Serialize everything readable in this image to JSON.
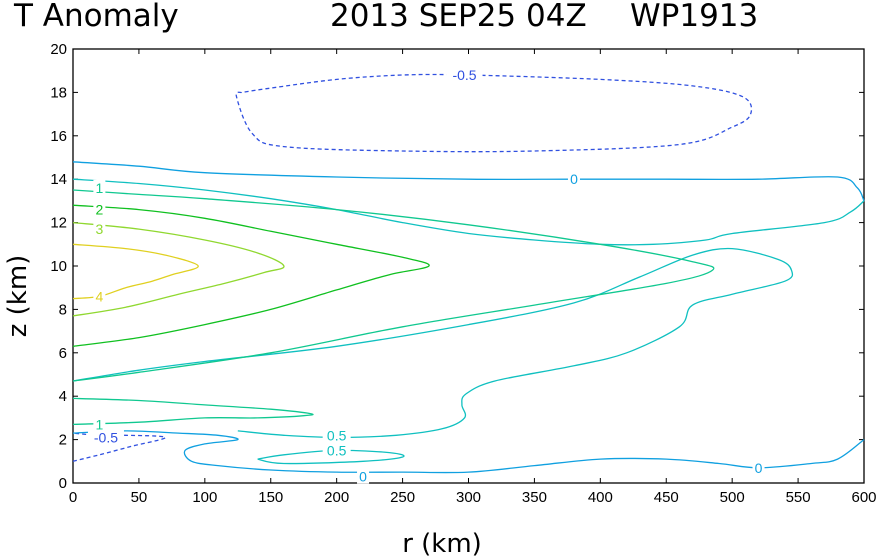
{
  "chart_data": {
    "type": "contour",
    "title": "T Anomaly",
    "date": "2013 SEP25 04Z",
    "storm_id": "WP1913",
    "xlabel": "r (km)",
    "ylabel": "z (km)",
    "xlim": [
      0,
      600
    ],
    "ylim": [
      0,
      20
    ],
    "xticks": [
      0,
      50,
      100,
      150,
      200,
      250,
      300,
      350,
      400,
      450,
      500,
      550,
      600
    ],
    "yticks": [
      0,
      2,
      4,
      6,
      8,
      10,
      12,
      14,
      16,
      18,
      20
    ],
    "colors": {
      "neg_0_5": "#3050e0",
      "zero": "#10a0e0",
      "pos_0_5": "#10c0c0",
      "pos_1": "#10c890",
      "pos_2": "#10c020",
      "pos_3": "#90d830",
      "pos_4": "#e0d020"
    },
    "contours": [
      {
        "level": "-0.5",
        "color": "neg_0_5",
        "dashed": true,
        "points": [
          [
            128,
            18
          ],
          [
            124,
            17.8
          ],
          [
            136,
            16.1
          ],
          [
            160,
            15.5
          ],
          [
            250,
            15.3
          ],
          [
            350,
            15.3
          ],
          [
            460,
            15.6
          ],
          [
            500,
            16.4
          ],
          [
            514,
            17
          ],
          [
            508,
            17.8
          ],
          [
            470,
            18.3
          ],
          [
            400,
            18.6
          ],
          [
            300,
            18.8
          ],
          [
            250,
            18.8
          ],
          [
            200,
            18.6
          ],
          [
            150,
            18.2
          ],
          [
            128,
            18
          ]
        ]
      },
      {
        "level": "-0.5",
        "color": "neg_0_5",
        "dashed": true,
        "points": [
          [
            0,
            1
          ],
          [
            20,
            1.3
          ],
          [
            45,
            1.7
          ],
          [
            70,
            2.1
          ],
          [
            40,
            2.2
          ],
          [
            20,
            2.2
          ],
          [
            0,
            2.3
          ]
        ]
      },
      {
        "level": "0",
        "color": "zero",
        "dashed": false,
        "points": [
          [
            0,
            14.8
          ],
          [
            50,
            14.6
          ],
          [
            100,
            14.3
          ],
          [
            200,
            14.1
          ],
          [
            300,
            14
          ],
          [
            380,
            14
          ],
          [
            450,
            14
          ],
          [
            520,
            14
          ],
          [
            580,
            14.1
          ],
          [
            595,
            13.6
          ],
          [
            600,
            13
          ]
        ]
      },
      {
        "level": "0",
        "color": "zero",
        "dashed": false,
        "points": [
          [
            0,
            2.3
          ],
          [
            40,
            2.4
          ],
          [
            80,
            2.3
          ],
          [
            110,
            2.2
          ],
          [
            125,
            2
          ],
          [
            100,
            1.8
          ],
          [
            85,
            1.5
          ],
          [
            90,
            1
          ],
          [
            110,
            0.8
          ],
          [
            150,
            0.6
          ],
          [
            200,
            0.5
          ],
          [
            250,
            0.5
          ],
          [
            300,
            0.5
          ],
          [
            350,
            0.8
          ],
          [
            400,
            1.1
          ],
          [
            450,
            1.1
          ],
          [
            490,
            0.9
          ],
          [
            520,
            0.7
          ],
          [
            560,
            0.9
          ],
          [
            580,
            1.1
          ],
          [
            600,
            2
          ]
        ]
      },
      {
        "level": "0.5",
        "color": "pos_0_5",
        "dashed": false,
        "points": [
          [
            0,
            4.7
          ],
          [
            50,
            5.2
          ],
          [
            100,
            5.6
          ],
          [
            200,
            6.3
          ],
          [
            300,
            7.3
          ],
          [
            380,
            8.3
          ],
          [
            430,
            9.5
          ],
          [
            470,
            10.5
          ],
          [
            500,
            10.8
          ],
          [
            535,
            10.3
          ],
          [
            545,
            9.8
          ],
          [
            540,
            9.3
          ],
          [
            500,
            8.7
          ],
          [
            470,
            8.2
          ],
          [
            460,
            7.2
          ],
          [
            420,
            6
          ],
          [
            380,
            5.4
          ],
          [
            320,
            4.7
          ],
          [
            298,
            4.1
          ],
          [
            295,
            3.6
          ],
          [
            297,
            3
          ],
          [
            280,
            2.5
          ],
          [
            245,
            2.2
          ],
          [
            200,
            2.1
          ],
          [
            160,
            2.2
          ],
          [
            125,
            2.4
          ]
        ]
      },
      {
        "level": "0.5",
        "color": "pos_0_5",
        "dashed": false,
        "points": [
          [
            600,
            13
          ],
          [
            590,
            12.5
          ],
          [
            570,
            12
          ],
          [
            500,
            11.5
          ],
          [
            480,
            11.2
          ],
          [
            440,
            11
          ],
          [
            400,
            11
          ],
          [
            350,
            11.2
          ],
          [
            300,
            11.5
          ],
          [
            250,
            12
          ],
          [
            200,
            12.6
          ],
          [
            150,
            13.1
          ],
          [
            100,
            13.5
          ],
          [
            50,
            13.8
          ],
          [
            0,
            14
          ]
        ]
      },
      {
        "level": "0.5",
        "color": "pos_0_5",
        "dashed": false,
        "points": [
          [
            140,
            1.1
          ],
          [
            160,
            1.3
          ],
          [
            200,
            1.5
          ],
          [
            240,
            1.4
          ],
          [
            250,
            1.2
          ],
          [
            220,
            1
          ],
          [
            160,
            0.9
          ],
          [
            140,
            1.1
          ]
        ]
      },
      {
        "level": "1",
        "color": "pos_1",
        "dashed": false,
        "points": [
          [
            0,
            13.5
          ],
          [
            50,
            13.3
          ],
          [
            100,
            13.1
          ],
          [
            200,
            12.6
          ],
          [
            300,
            11.9
          ],
          [
            400,
            11
          ],
          [
            470,
            10.2
          ],
          [
            485,
            9.8
          ],
          [
            450,
            9.2
          ],
          [
            350,
            8.2
          ],
          [
            250,
            7.2
          ],
          [
            150,
            6
          ],
          [
            50,
            5.1
          ],
          [
            0,
            4.7
          ]
        ]
      },
      {
        "level": "1",
        "color": "pos_1",
        "dashed": false,
        "points": [
          [
            0,
            3.9
          ],
          [
            50,
            3.8
          ],
          [
            100,
            3.6
          ],
          [
            150,
            3.4
          ],
          [
            180,
            3.2
          ],
          [
            175,
            3.1
          ],
          [
            140,
            3
          ],
          [
            100,
            3
          ],
          [
            50,
            2.8
          ],
          [
            0,
            2.7
          ]
        ]
      },
      {
        "level": "2",
        "color": "pos_2",
        "dashed": false,
        "points": [
          [
            0,
            12.8
          ],
          [
            50,
            12.6
          ],
          [
            100,
            12.2
          ],
          [
            150,
            11.6
          ],
          [
            200,
            11
          ],
          [
            250,
            10.4
          ],
          [
            270,
            10
          ],
          [
            240,
            9.6
          ],
          [
            200,
            8.9
          ],
          [
            150,
            8
          ],
          [
            100,
            7.3
          ],
          [
            50,
            6.7
          ],
          [
            0,
            6.3
          ]
        ]
      },
      {
        "level": "3",
        "color": "pos_3",
        "dashed": false,
        "points": [
          [
            0,
            12
          ],
          [
            50,
            11.7
          ],
          [
            100,
            11.2
          ],
          [
            140,
            10.6
          ],
          [
            160,
            10
          ],
          [
            145,
            9.7
          ],
          [
            115,
            9.2
          ],
          [
            80,
            8.7
          ],
          [
            40,
            8.1
          ],
          [
            0,
            7.7
          ]
        ]
      },
      {
        "level": "4",
        "color": "pos_4",
        "dashed": false,
        "points": [
          [
            0,
            11
          ],
          [
            40,
            10.8
          ],
          [
            70,
            10.5
          ],
          [
            95,
            10
          ],
          [
            75,
            9.6
          ],
          [
            60,
            9.3
          ],
          [
            40,
            9
          ],
          [
            20,
            8.6
          ],
          [
            0,
            8.5
          ]
        ]
      }
    ],
    "contour_labels": [
      {
        "text": "-0.5",
        "r": 297,
        "z": 18.8,
        "color": "neg_0_5"
      },
      {
        "text": "0",
        "r": 380,
        "z": 14,
        "color": "zero"
      },
      {
        "text": "1",
        "r": 20,
        "z": 13.6,
        "color": "pos_1"
      },
      {
        "text": "2",
        "r": 20,
        "z": 12.6,
        "color": "pos_2"
      },
      {
        "text": "3",
        "r": 20,
        "z": 11.7,
        "color": "pos_3"
      },
      {
        "text": "4",
        "r": 20,
        "z": 8.6,
        "color": "pos_4"
      },
      {
        "text": "1",
        "r": 20,
        "z": 2.7,
        "color": "pos_1"
      },
      {
        "text": "-0.5",
        "r": 25,
        "z": 2.1,
        "color": "neg_0_5"
      },
      {
        "text": "0.5",
        "r": 200,
        "z": 2.2,
        "color": "pos_0_5"
      },
      {
        "text": "0.5",
        "r": 200,
        "z": 1.5,
        "color": "pos_0_5"
      },
      {
        "text": "0",
        "r": 220,
        "z": 0.3,
        "color": "zero"
      },
      {
        "text": "0",
        "r": 520,
        "z": 0.7,
        "color": "zero"
      }
    ]
  }
}
